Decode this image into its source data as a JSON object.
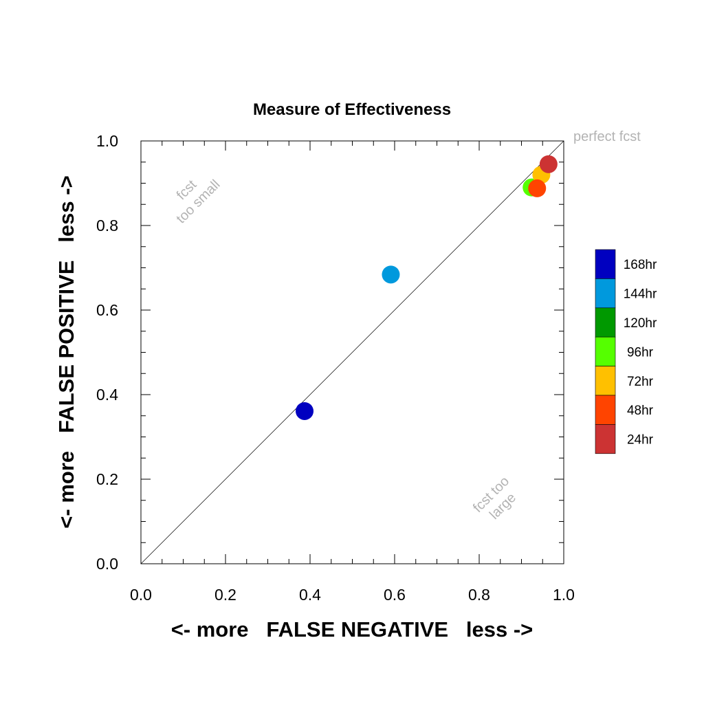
{
  "chart_data": {
    "type": "scatter",
    "title": "Measure of Effectiveness",
    "xlabel": "<- more   FALSE NEGATIVE   less ->",
    "ylabel": "<- more   FALSE POSITIVE   less ->",
    "xlim": [
      0.0,
      1.0
    ],
    "ylim": [
      0.0,
      1.0
    ],
    "xticks": [
      "0.0",
      "0.2",
      "0.4",
      "0.6",
      "0.8",
      "1.0"
    ],
    "yticks": [
      "0.0",
      "0.2",
      "0.4",
      "0.6",
      "0.8",
      "1.0"
    ],
    "grid": false,
    "diagonal_line": true,
    "legend_placement": "right",
    "annotations": {
      "perfect": "perfect fcst",
      "too_small_line1": "fcst",
      "too_small_line2": "too small",
      "too_large_line1": "fcst too",
      "too_large_line2": "large"
    },
    "series": [
      {
        "name": "168hr",
        "color": "#0000c0",
        "x": 0.387,
        "y": 0.361
      },
      {
        "name": "144hr",
        "color": "#0099dd",
        "x": 0.591,
        "y": 0.684
      },
      {
        "name": "120hr",
        "color": "#009900",
        "x": null,
        "y": null
      },
      {
        "name": "96hr",
        "color": "#55ff00",
        "x": 0.924,
        "y": 0.89
      },
      {
        "name": "72hr",
        "color": "#ffc000",
        "x": 0.947,
        "y": 0.92
      },
      {
        "name": "48hr",
        "color": "#ff4400",
        "x": 0.937,
        "y": 0.888
      },
      {
        "name": "24hr",
        "color": "#cc3333",
        "x": 0.964,
        "y": 0.945
      }
    ]
  }
}
